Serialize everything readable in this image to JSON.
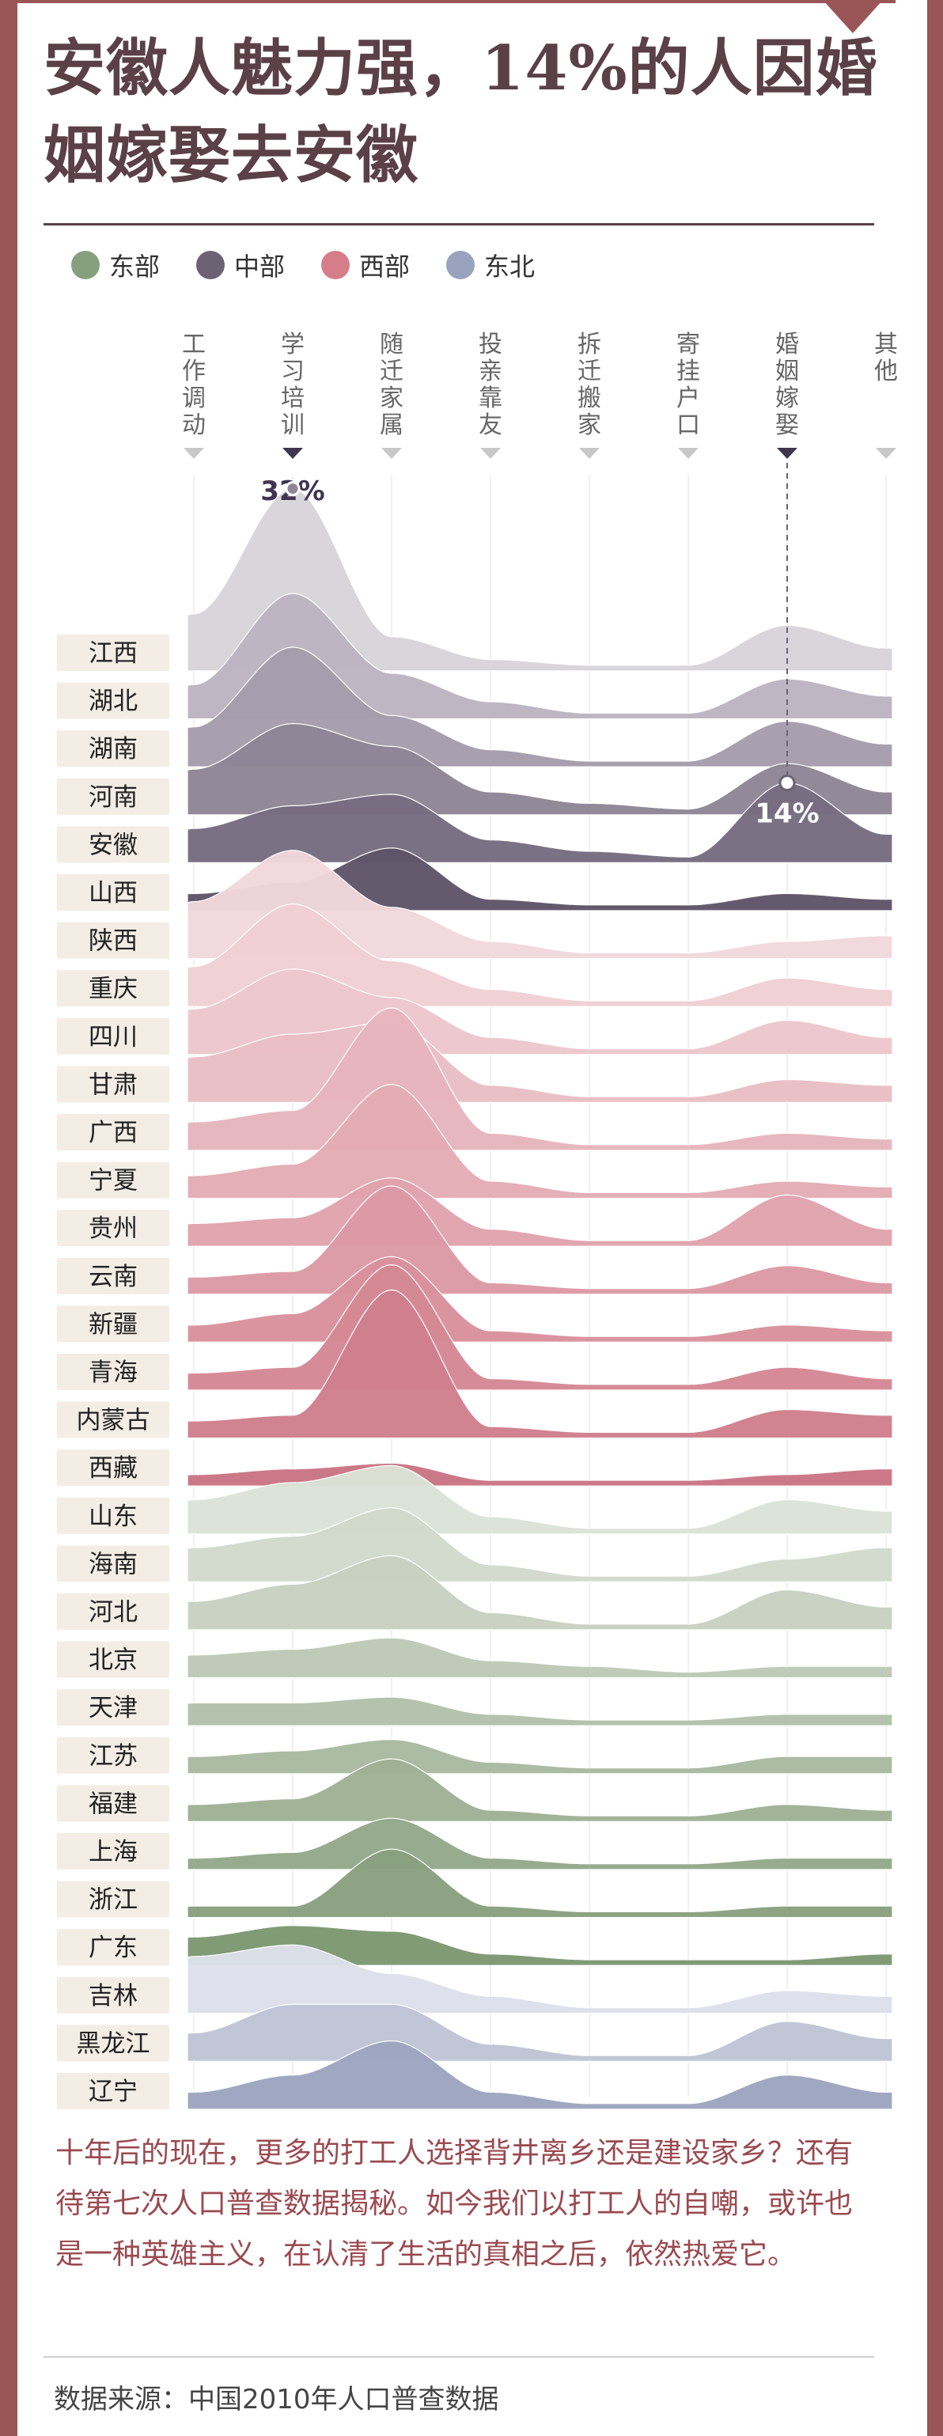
{
  "title": "安徽人魅力强，14%的人因婚姻嫁娶去安徽",
  "legend": [
    {
      "label": "东部",
      "color": "#86a07e"
    },
    {
      "label": "中部",
      "color": "#6c6274"
    },
    {
      "label": "西部",
      "color": "#d57d89"
    },
    {
      "label": "东北",
      "color": "#9aa3bd"
    }
  ],
  "footer": {
    "body": "十年后的现在，更多的打工人选择背井离乡还是建设家乡？还有待第七次人口普查数据揭秘。如今我们以打工人的自嘲，或许也是一种英雄主义，在认清了生活的真相之后，依然热爱它。",
    "source": "数据来源：中国2010年人口普查数据"
  },
  "chart_data": {
    "type": "area",
    "categories": [
      "工作调动",
      "学习培训",
      "随迁家属",
      "投亲靠友",
      "拆迁搬家",
      "寄挂户口",
      "婚姻嫁娶",
      "其他"
    ],
    "unit": "%",
    "annotations": [
      {
        "label": "32%",
        "province": "江西",
        "category": "学习培训"
      },
      {
        "label": "14%",
        "province": "安徽",
        "category": "婚姻嫁娶"
      }
    ],
    "series": [
      {
        "name": "江西",
        "region": "中部",
        "color": "#d7d4da",
        "values": [
          10,
          32,
          6,
          2,
          1,
          1,
          8,
          4
        ]
      },
      {
        "name": "湖北",
        "region": "中部",
        "color": "#bcb5c1",
        "values": [
          6,
          22,
          8,
          3,
          1,
          1,
          7,
          4
        ]
      },
      {
        "name": "湖南",
        "region": "中部",
        "color": "#a59dab",
        "values": [
          7,
          21,
          9,
          3,
          1,
          1,
          8,
          4
        ]
      },
      {
        "name": "河南",
        "region": "中部",
        "color": "#8e8596",
        "values": [
          8,
          16,
          12,
          4,
          2,
          1,
          9,
          4
        ]
      },
      {
        "name": "安徽",
        "region": "中部",
        "color": "#776c80",
        "values": [
          6,
          10,
          12,
          4,
          2,
          1,
          14,
          5
        ]
      },
      {
        "name": "山西",
        "region": "中部",
        "color": "#5f5468",
        "values": [
          3,
          5,
          11,
          2,
          1,
          1,
          3,
          2
        ]
      },
      {
        "name": "陕西",
        "region": "西部",
        "color": "#f1d8dc",
        "values": [
          10,
          19,
          9,
          3,
          1,
          1,
          3,
          4
        ]
      },
      {
        "name": "重庆",
        "region": "西部",
        "color": "#efd0d5",
        "values": [
          7,
          18,
          8,
          3,
          1,
          1,
          5,
          3
        ]
      },
      {
        "name": "四川",
        "region": "西部",
        "color": "#ecc7cd",
        "values": [
          8,
          15,
          10,
          3,
          1,
          1,
          6,
          3
        ]
      },
      {
        "name": "甘肃",
        "region": "西部",
        "color": "#e9bec5",
        "values": [
          8,
          12,
          14,
          3,
          1,
          1,
          4,
          3
        ]
      },
      {
        "name": "广西",
        "region": "西部",
        "color": "#e6b5bd",
        "values": [
          5,
          7,
          25,
          3,
          1,
          1,
          3,
          2
        ]
      },
      {
        "name": "宁夏",
        "region": "西部",
        "color": "#e3acb5",
        "values": [
          4,
          6,
          20,
          3,
          1,
          1,
          3,
          2
        ]
      },
      {
        "name": "贵州",
        "region": "西部",
        "color": "#e0a3ad",
        "values": [
          4,
          5,
          12,
          3,
          1,
          1,
          9,
          3
        ]
      },
      {
        "name": "云南",
        "region": "西部",
        "color": "#dc9aa5",
        "values": [
          3,
          4,
          19,
          2,
          1,
          1,
          5,
          2
        ]
      },
      {
        "name": "新疆",
        "region": "西部",
        "color": "#d9919d",
        "values": [
          3,
          5,
          15,
          2,
          1,
          1,
          3,
          2
        ]
      },
      {
        "name": "青海",
        "region": "西部",
        "color": "#d58895",
        "values": [
          3,
          4,
          22,
          2,
          1,
          1,
          4,
          2
        ]
      },
      {
        "name": "内蒙古",
        "region": "西部",
        "color": "#d07f8d",
        "values": [
          3,
          4,
          26,
          2,
          1,
          1,
          5,
          4
        ]
      },
      {
        "name": "西藏",
        "region": "西部",
        "color": "#c97585",
        "values": [
          2,
          3,
          4,
          1,
          1,
          1,
          2,
          3
        ]
      },
      {
        "name": "山东",
        "region": "东部",
        "color": "#dbe2d7",
        "values": [
          6,
          9,
          12,
          3,
          1,
          1,
          6,
          4
        ]
      },
      {
        "name": "海南",
        "region": "东部",
        "color": "#d1dacc",
        "values": [
          6,
          8,
          13,
          3,
          1,
          1,
          4,
          6
        ]
      },
      {
        "name": "河北",
        "region": "东部",
        "color": "#c7d1c1",
        "values": [
          5,
          8,
          13,
          3,
          1,
          1,
          7,
          4
        ]
      },
      {
        "name": "北京",
        "region": "东部",
        "color": "#bdc9b6",
        "values": [
          4,
          5,
          7,
          3,
          2,
          1,
          2,
          2
        ]
      },
      {
        "name": "天津",
        "region": "东部",
        "color": "#b3c1ab",
        "values": [
          4,
          4,
          5,
          2,
          1,
          1,
          2,
          2
        ]
      },
      {
        "name": "江苏",
        "region": "东部",
        "color": "#a9b9a0",
        "values": [
          3,
          4,
          6,
          2,
          1,
          1,
          3,
          3
        ]
      },
      {
        "name": "福建",
        "region": "东部",
        "color": "#9fb195",
        "values": [
          3,
          4,
          11,
          2,
          1,
          1,
          3,
          2
        ]
      },
      {
        "name": "上海",
        "region": "东部",
        "color": "#94a88a",
        "values": [
          2,
          3,
          9,
          2,
          1,
          1,
          2,
          2
        ]
      },
      {
        "name": "浙江",
        "region": "东部",
        "color": "#89a07f",
        "values": [
          2,
          2,
          12,
          2,
          1,
          1,
          2,
          2
        ]
      },
      {
        "name": "广东",
        "region": "东部",
        "color": "#7d9873",
        "values": [
          5,
          7,
          6,
          2,
          1,
          1,
          1,
          2
        ]
      },
      {
        "name": "吉林",
        "region": "东北",
        "color": "#dde0ea",
        "values": [
          10,
          12,
          7,
          3,
          1,
          1,
          4,
          3
        ]
      },
      {
        "name": "黑龙江",
        "region": "东北",
        "color": "#bfc4d6",
        "values": [
          5,
          10,
          10,
          3,
          1,
          1,
          7,
          4
        ]
      },
      {
        "name": "辽宁",
        "region": "东北",
        "color": "#9da5bf",
        "values": [
          3,
          6,
          12,
          3,
          1,
          1,
          6,
          3
        ]
      }
    ]
  }
}
